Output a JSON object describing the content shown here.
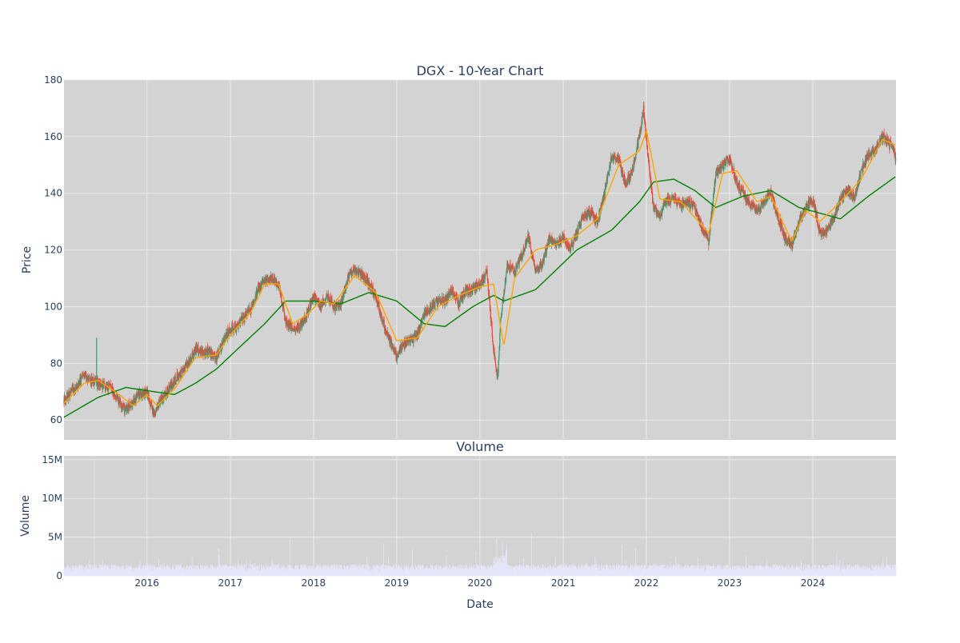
{
  "colors": {
    "plot_bg": "#d3d3d3",
    "grid": "#ebebeb",
    "text": "#2a3f5f",
    "up": "#3d9970",
    "down": "#ff4136",
    "ma_short": "#ffa500",
    "ma_long": "#008000",
    "volume": "#e6e6fa"
  },
  "chart_data": [
    {
      "type": "candlestick",
      "title": "DGX - 10-Year Chart",
      "ylabel": "Price",
      "ylim": [
        53,
        180
      ],
      "xlim": [
        "2015-01-02",
        "2024-12-31"
      ],
      "x_ticks": [
        "2016",
        "2017",
        "2018",
        "2019",
        "2020",
        "2021",
        "2022",
        "2023",
        "2024"
      ],
      "y_ticks": [
        60,
        80,
        100,
        120,
        140,
        160,
        180
      ],
      "grid": true,
      "legend": "none",
      "series": [
        {
          "kind": "close_path",
          "points": [
            [
              "2015-01-02",
              67
            ],
            [
              "2015-02-01",
              70
            ],
            [
              "2015-03-01",
              72
            ],
            [
              "2015-04-01",
              76
            ],
            [
              "2015-05-01",
              74
            ],
            [
              "2015-06-01",
              73
            ],
            [
              "2015-07-01",
              72
            ],
            [
              "2015-08-01",
              71
            ],
            [
              "2015-09-01",
              66
            ],
            [
              "2015-10-01",
              63
            ],
            [
              "2015-11-01",
              67
            ],
            [
              "2015-12-01",
              69
            ],
            [
              "2016-01-01",
              70
            ],
            [
              "2016-02-01",
              62
            ],
            [
              "2016-03-01",
              67
            ],
            [
              "2016-04-01",
              70
            ],
            [
              "2016-05-01",
              74
            ],
            [
              "2016-06-01",
              77
            ],
            [
              "2016-07-01",
              80
            ],
            [
              "2016-08-01",
              85
            ],
            [
              "2016-09-01",
              84
            ],
            [
              "2016-10-01",
              84
            ],
            [
              "2016-11-01",
              82
            ],
            [
              "2016-12-01",
              88
            ],
            [
              "2017-01-01",
              92
            ],
            [
              "2017-02-01",
              93
            ],
            [
              "2017-03-01",
              96
            ],
            [
              "2017-04-01",
              99
            ],
            [
              "2017-05-01",
              106
            ],
            [
              "2017-06-01",
              109
            ],
            [
              "2017-07-01",
              110
            ],
            [
              "2017-08-01",
              108
            ],
            [
              "2017-09-01",
              95
            ],
            [
              "2017-10-01",
              92
            ],
            [
              "2017-11-01",
              93
            ],
            [
              "2017-12-01",
              97
            ],
            [
              "2018-01-01",
              104
            ],
            [
              "2018-02-01",
              100
            ],
            [
              "2018-03-01",
              104
            ],
            [
              "2018-04-01",
              100
            ],
            [
              "2018-05-01",
              101
            ],
            [
              "2018-06-01",
              110
            ],
            [
              "2018-07-01",
              113
            ],
            [
              "2018-08-01",
              111
            ],
            [
              "2018-09-01",
              108
            ],
            [
              "2018-10-01",
              104
            ],
            [
              "2018-11-01",
              95
            ],
            [
              "2018-12-01",
              88
            ],
            [
              "2019-01-01",
              82
            ],
            [
              "2019-02-01",
              87
            ],
            [
              "2019-03-01",
              88
            ],
            [
              "2019-04-01",
              90
            ],
            [
              "2019-05-01",
              97
            ],
            [
              "2019-06-01",
              100
            ],
            [
              "2019-07-01",
              102
            ],
            [
              "2019-08-01",
              102
            ],
            [
              "2019-09-01",
              106
            ],
            [
              "2019-10-01",
              101
            ],
            [
              "2019-11-01",
              106
            ],
            [
              "2019-12-01",
              106
            ],
            [
              "2020-01-01",
              108
            ],
            [
              "2020-02-01",
              112
            ],
            [
              "2020-03-01",
              85
            ],
            [
              "2020-03-20",
              75
            ],
            [
              "2020-04-01",
              95
            ],
            [
              "2020-05-01",
              115
            ],
            [
              "2020-06-01",
              112
            ],
            [
              "2020-07-01",
              118
            ],
            [
              "2020-08-01",
              125
            ],
            [
              "2020-09-01",
              112
            ],
            [
              "2020-10-01",
              115
            ],
            [
              "2020-11-01",
              124
            ],
            [
              "2020-12-01",
              122
            ],
            [
              "2021-01-01",
              125
            ],
            [
              "2021-02-01",
              120
            ],
            [
              "2021-03-01",
              126
            ],
            [
              "2021-04-01",
              132
            ],
            [
              "2021-05-01",
              133
            ],
            [
              "2021-06-01",
              130
            ],
            [
              "2021-07-01",
              140
            ],
            [
              "2021-08-01",
              153
            ],
            [
              "2021-09-01",
              152
            ],
            [
              "2021-10-01",
              143
            ],
            [
              "2021-11-01",
              148
            ],
            [
              "2021-12-01",
              160
            ],
            [
              "2021-12-20",
              170
            ],
            [
              "2022-01-01",
              158
            ],
            [
              "2022-02-01",
              135
            ],
            [
              "2022-03-01",
              132
            ],
            [
              "2022-04-01",
              138
            ],
            [
              "2022-05-01",
              138
            ],
            [
              "2022-06-01",
              136
            ],
            [
              "2022-07-01",
              137
            ],
            [
              "2022-08-01",
              135
            ],
            [
              "2022-09-01",
              128
            ],
            [
              "2022-10-01",
              123
            ],
            [
              "2022-11-01",
              147
            ],
            [
              "2022-12-01",
              150
            ],
            [
              "2023-01-01",
              152
            ],
            [
              "2023-02-01",
              144
            ],
            [
              "2023-03-01",
              140
            ],
            [
              "2023-04-01",
              136
            ],
            [
              "2023-05-01",
              134
            ],
            [
              "2023-06-01",
              137
            ],
            [
              "2023-07-01",
              140
            ],
            [
              "2023-08-01",
              132
            ],
            [
              "2023-09-01",
              124
            ],
            [
              "2023-10-01",
              122
            ],
            [
              "2023-11-01",
              130
            ],
            [
              "2023-12-01",
              135
            ],
            [
              "2024-01-01",
              138
            ],
            [
              "2024-02-01",
              126
            ],
            [
              "2024-03-01",
              127
            ],
            [
              "2024-04-01",
              131
            ],
            [
              "2024-05-01",
              138
            ],
            [
              "2024-06-01",
              141
            ],
            [
              "2024-07-01",
              138
            ],
            [
              "2024-08-01",
              148
            ],
            [
              "2024-09-01",
              154
            ],
            [
              "2024-10-01",
              155
            ],
            [
              "2024-11-01",
              160
            ],
            [
              "2024-12-15",
              156
            ],
            [
              "2024-12-31",
              152
            ]
          ]
        },
        {
          "kind": "ma_short",
          "points": [
            [
              "2015-01-02",
              66
            ],
            [
              "2015-04-01",
              73
            ],
            [
              "2015-06-01",
              74
            ],
            [
              "2015-09-01",
              69
            ],
            [
              "2015-11-01",
              65
            ],
            [
              "2016-01-01",
              69
            ],
            [
              "2016-02-15",
              65
            ],
            [
              "2016-05-01",
              71
            ],
            [
              "2016-08-01",
              82
            ],
            [
              "2016-11-01",
              83
            ],
            [
              "2017-01-01",
              90
            ],
            [
              "2017-04-01",
              98
            ],
            [
              "2017-06-01",
              108
            ],
            [
              "2017-08-01",
              108
            ],
            [
              "2017-10-01",
              94
            ],
            [
              "2017-12-01",
              97
            ],
            [
              "2018-02-01",
              102
            ],
            [
              "2018-04-01",
              101
            ],
            [
              "2018-07-01",
              111
            ],
            [
              "2018-10-01",
              105
            ],
            [
              "2019-01-01",
              88
            ],
            [
              "2019-04-01",
              89
            ],
            [
              "2019-07-01",
              100
            ],
            [
              "2019-10-01",
              104
            ],
            [
              "2020-01-01",
              107
            ],
            [
              "2020-03-01",
              108
            ],
            [
              "2020-04-15",
              86
            ],
            [
              "2020-06-01",
              110
            ],
            [
              "2020-09-01",
              120
            ],
            [
              "2020-12-01",
              122
            ],
            [
              "2021-03-01",
              125
            ],
            [
              "2021-06-01",
              131
            ],
            [
              "2021-09-01",
              150
            ],
            [
              "2021-12-01",
              155
            ],
            [
              "2022-01-01",
              162
            ],
            [
              "2022-03-01",
              138
            ],
            [
              "2022-06-01",
              137
            ],
            [
              "2022-10-01",
              126
            ],
            [
              "2022-12-01",
              147
            ],
            [
              "2023-02-01",
              148
            ],
            [
              "2023-05-01",
              137
            ],
            [
              "2023-07-01",
              139
            ],
            [
              "2023-10-01",
              123
            ],
            [
              "2023-12-01",
              134
            ],
            [
              "2024-02-01",
              130
            ],
            [
              "2024-05-01",
              137
            ],
            [
              "2024-08-01",
              145
            ],
            [
              "2024-11-01",
              159
            ],
            [
              "2024-12-31",
              157
            ]
          ]
        },
        {
          "kind": "ma_long",
          "points": [
            [
              "2015-01-02",
              61
            ],
            [
              "2015-06-01",
              68
            ],
            [
              "2015-10-01",
              71.5
            ],
            [
              "2016-02-01",
              70
            ],
            [
              "2016-05-01",
              69
            ],
            [
              "2016-08-01",
              73
            ],
            [
              "2016-11-01",
              78
            ],
            [
              "2017-02-01",
              85
            ],
            [
              "2017-06-01",
              94
            ],
            [
              "2017-09-01",
              102
            ],
            [
              "2018-01-01",
              102
            ],
            [
              "2018-05-01",
              101
            ],
            [
              "2018-09-01",
              105
            ],
            [
              "2019-01-01",
              102
            ],
            [
              "2019-05-01",
              94
            ],
            [
              "2019-08-01",
              93
            ],
            [
              "2019-12-01",
              100
            ],
            [
              "2020-03-01",
              104
            ],
            [
              "2020-04-15",
              102
            ],
            [
              "2020-09-01",
              106
            ],
            [
              "2020-12-01",
              113
            ],
            [
              "2021-03-01",
              120
            ],
            [
              "2021-08-01",
              127
            ],
            [
              "2021-12-01",
              137
            ],
            [
              "2022-02-01",
              144
            ],
            [
              "2022-05-01",
              145
            ],
            [
              "2022-08-01",
              141
            ],
            [
              "2022-11-01",
              135
            ],
            [
              "2023-03-01",
              139
            ],
            [
              "2023-07-01",
              141
            ],
            [
              "2023-11-01",
              135
            ],
            [
              "2024-02-01",
              133
            ],
            [
              "2024-05-01",
              131
            ],
            [
              "2024-09-01",
              139
            ],
            [
              "2024-12-31",
              146
            ]
          ]
        }
      ]
    },
    {
      "type": "bar",
      "title": "Volume",
      "xlabel": "Date",
      "ylabel": "Volume",
      "ylim": [
        0,
        15500000
      ],
      "y_ticks": [
        0,
        5000000,
        10000000,
        15000000
      ],
      "y_tick_labels": [
        "0",
        "5M",
        "10M",
        "15M"
      ],
      "x_ticks": [
        "2016",
        "2017",
        "2018",
        "2019",
        "2020",
        "2021",
        "2022",
        "2023",
        "2024"
      ],
      "typical_level": 1200000,
      "spikes": [
        [
          "2015-05-15",
          15000000
        ],
        [
          "2016-11-10",
          3600000
        ],
        [
          "2017-09-20",
          4700000
        ],
        [
          "2018-11-05",
          4200000
        ],
        [
          "2019-03-10",
          3500000
        ],
        [
          "2019-12-15",
          3100000
        ],
        [
          "2020-03-15",
          4800000
        ],
        [
          "2020-08-15",
          5500000
        ],
        [
          "2021-09-15",
          4000000
        ],
        [
          "2021-11-15",
          3500000
        ],
        [
          "2022-05-10",
          2500000
        ],
        [
          "2023-03-15",
          2600000
        ],
        [
          "2024-04-15",
          2800000
        ],
        [
          "2024-11-20",
          2500000
        ]
      ]
    }
  ]
}
